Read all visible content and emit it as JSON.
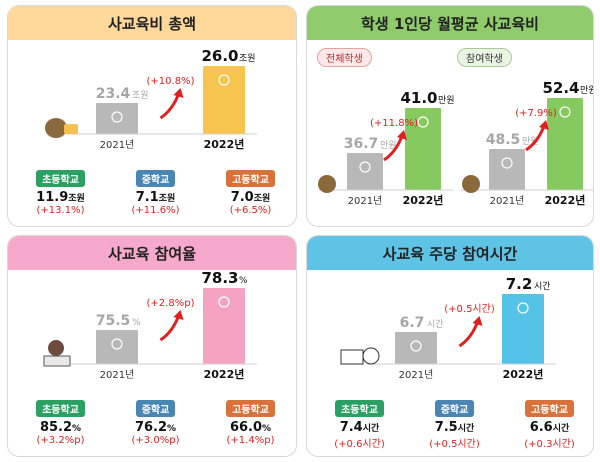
{
  "colors": {
    "yellow": "#ffd89a",
    "yellow_bar": "#f7c54f",
    "green": "#8fca6b",
    "green_bar": "#86c95f",
    "pink": "#f6a9ca",
    "pink_bar": "#f4a3c3",
    "blue": "#5fc3e6",
    "blue_bar": "#55c2e8",
    "grey_bar": "#b8b8b8",
    "elem": "#2aa162",
    "mid": "#4a86b4",
    "high": "#d9723a"
  },
  "panels": {
    "total": {
      "title": "사교육비 총액"
    },
    "per_student": {
      "title": "학생 1인당 월평균 사교육비",
      "all_label": "전체학생",
      "part_label": "참여학생"
    },
    "participation": {
      "title": "사교육 참여율"
    },
    "hours": {
      "title": "사교육 주당 참여시간"
    }
  },
  "chart_data": [
    {
      "type": "bar",
      "id": "total",
      "title": "사교육비 총액",
      "categories": [
        "2021년",
        "2022년"
      ],
      "values": [
        23.4,
        26.0
      ],
      "unit": "조원",
      "value_labels": [
        "23.4",
        "26.0"
      ],
      "change": "(+10.8%)",
      "breakdown": [
        {
          "name": "초등학교",
          "value": "11.9",
          "unit": "조원",
          "change": "(+13.1%)"
        },
        {
          "name": "중학교",
          "value": "7.1",
          "unit": "조원",
          "change": "(+11.6%)"
        },
        {
          "name": "고등학교",
          "value": "7.0",
          "unit": "조원",
          "change": "(+6.5%)"
        }
      ]
    },
    {
      "type": "bar",
      "id": "per_all",
      "title": "전체학생",
      "categories": [
        "2021년",
        "2022년"
      ],
      "values": [
        36.7,
        41.0
      ],
      "unit": "만원",
      "value_labels": [
        "36.7",
        "41.0"
      ],
      "change": "(+11.8%)"
    },
    {
      "type": "bar",
      "id": "per_part",
      "title": "참여학생",
      "categories": [
        "2021년",
        "2022년"
      ],
      "values": [
        48.5,
        52.4
      ],
      "unit": "만원",
      "value_labels": [
        "48.5",
        "52.4"
      ],
      "change": "(+7.9%)"
    },
    {
      "type": "bar",
      "id": "participation",
      "title": "사교육 참여율",
      "categories": [
        "2021년",
        "2022년"
      ],
      "values": [
        75.5,
        78.3
      ],
      "unit": "%",
      "value_labels": [
        "75.5",
        "78.3"
      ],
      "change": "(+2.8%p)",
      "breakdown": [
        {
          "name": "초등학교",
          "value": "85.2",
          "unit": "%",
          "change": "(+3.2%p)"
        },
        {
          "name": "중학교",
          "value": "76.2",
          "unit": "%",
          "change": "(+3.0%p)"
        },
        {
          "name": "고등학교",
          "value": "66.0",
          "unit": "%",
          "change": "(+1.4%p)"
        }
      ]
    },
    {
      "type": "bar",
      "id": "hours",
      "title": "사교육 주당 참여시간",
      "categories": [
        "2021년",
        "2022년"
      ],
      "values": [
        6.7,
        7.2
      ],
      "unit": "시간",
      "value_labels": [
        "6.7",
        "7.2"
      ],
      "change": "(+0.5시간)",
      "breakdown": [
        {
          "name": "초등학교",
          "value": "7.4",
          "unit": "시간",
          "change": "(+0.6시간)"
        },
        {
          "name": "중학교",
          "value": "7.5",
          "unit": "시간",
          "change": "(+0.5시간)"
        },
        {
          "name": "고등학교",
          "value": "6.6",
          "unit": "시간",
          "change": "(+0.3시간)"
        }
      ]
    }
  ]
}
